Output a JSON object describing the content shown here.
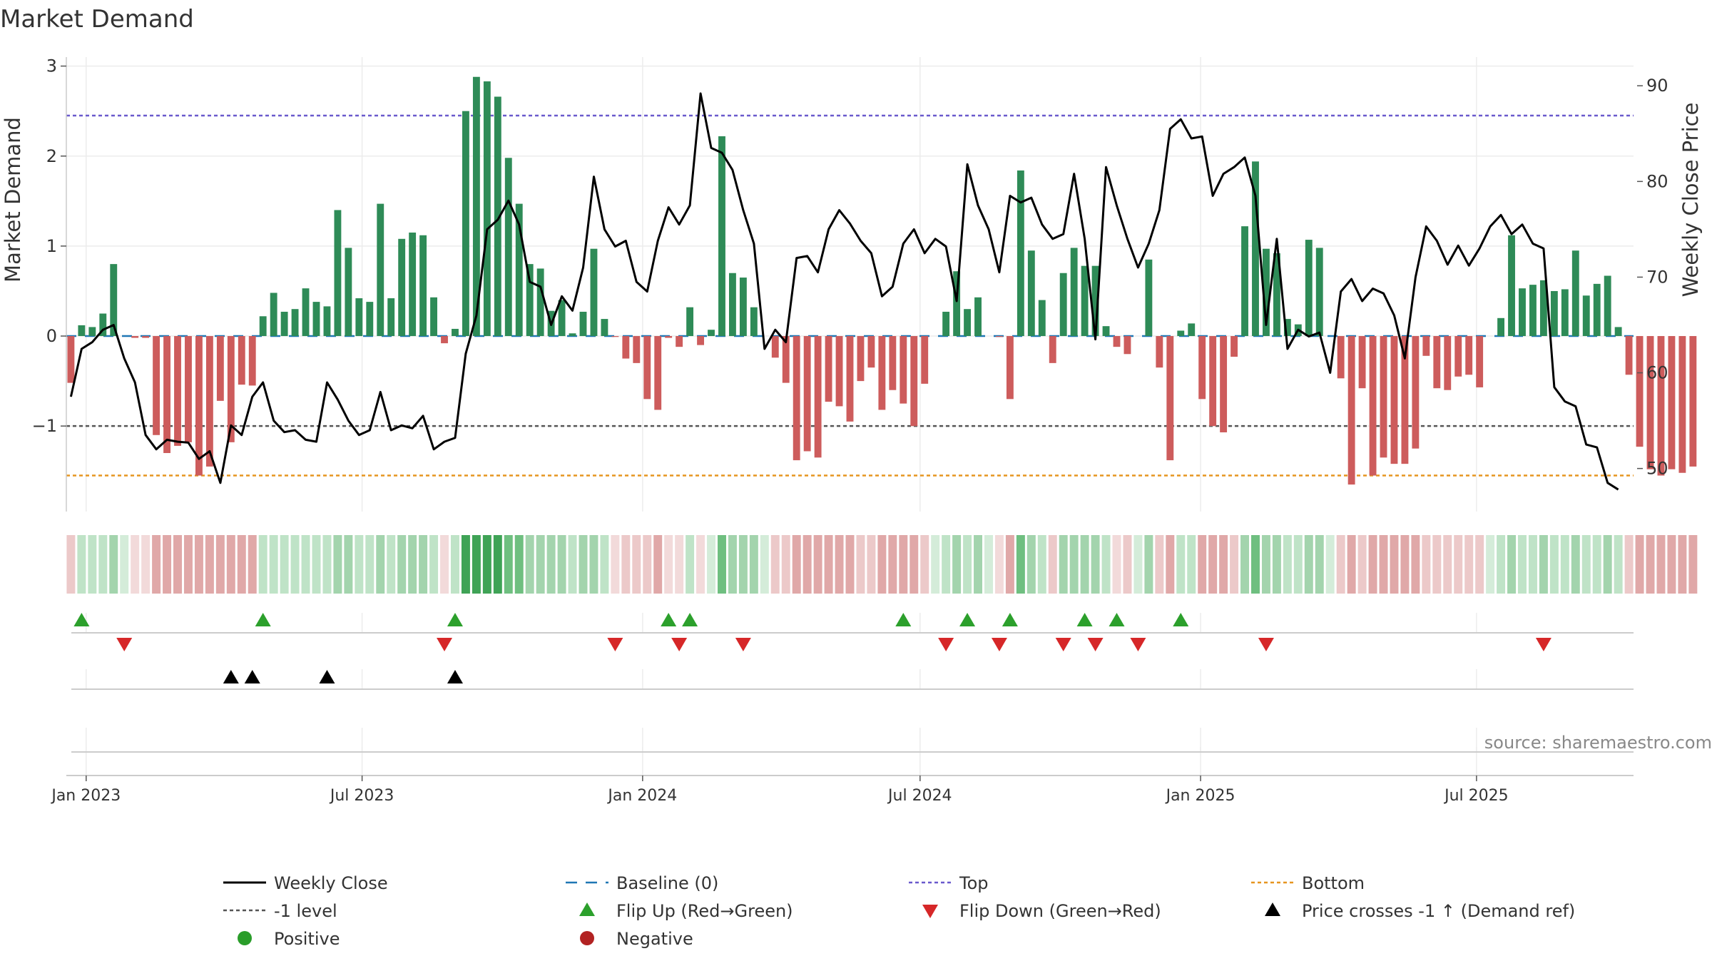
{
  "title": "Market Demand",
  "source": "source: sharemaestro.com",
  "colors": {
    "positive": "#2e8b57",
    "negative": "#cd5c5c",
    "close": "#000000",
    "baseline": "#1f77b4",
    "top": "#6a5acd",
    "bottom": "#e69520",
    "neg_level": "#555555",
    "flip_up": "#2ca02c",
    "flip_down": "#d62728",
    "cross": "#000000",
    "dot_pos": "#2a9d2a",
    "dot_neg": "#b22222"
  },
  "chart_data": {
    "type": "bar",
    "title": "Market Demand",
    "ylabel_left": "Market Demand",
    "ylabel_right": "Weekly Close Price",
    "ylim_left": [
      -1.95,
      3.1
    ],
    "yticks_left": [
      3,
      2,
      1,
      0,
      -1
    ],
    "ytick_labels_left": [
      "3",
      "2",
      "1",
      "0",
      "−1"
    ],
    "ylim_right": [
      45.5,
      93
    ],
    "yticks_right": [
      90,
      80,
      70,
      60,
      50
    ],
    "ytick_labels_right": [
      "90",
      "80",
      "70",
      "60",
      "50"
    ],
    "x_start": "2022-12-19",
    "x_end": "2025-10-12",
    "x_ticks": [
      {
        "date": "2023-01-01",
        "label": "Jan 2023"
      },
      {
        "date": "2023-07-01",
        "label": "Jul 2023"
      },
      {
        "date": "2024-01-01",
        "label": "Jan 2024"
      },
      {
        "date": "2024-07-01",
        "label": "Jul 2024"
      },
      {
        "date": "2025-01-01",
        "label": "Jan 2025"
      },
      {
        "date": "2025-07-01",
        "label": "Jul 2025"
      }
    ],
    "first_week": "2022-12-19",
    "levels": {
      "top": 2.45,
      "bottom": -1.55,
      "neg_level": -1.0,
      "baseline": 0
    },
    "demand": [
      -0.52,
      0.12,
      0.1,
      0.25,
      0.8,
      0,
      -0.02,
      -0.02,
      -1.1,
      -1.3,
      -1.22,
      -1.18,
      -1.55,
      -1.45,
      -0.72,
      -1.18,
      -0.54,
      -0.55,
      0.22,
      0.48,
      0.27,
      0.3,
      0.53,
      0.38,
      0.33,
      1.4,
      0.98,
      0.42,
      0.38,
      1.47,
      0.42,
      1.08,
      1.15,
      1.12,
      0.43,
      -0.08,
      0.08,
      2.5,
      2.88,
      2.83,
      2.66,
      1.98,
      1.47,
      0.8,
      0.75,
      0.28,
      0.4,
      0.03,
      0.27,
      0.97,
      0.19,
      -0.01,
      -0.25,
      -0.3,
      -0.7,
      -0.82,
      -0.02,
      -0.12,
      0.32,
      -0.1,
      0.07,
      2.22,
      0.7,
      0.65,
      0.32,
      0,
      -0.24,
      -0.52,
      -1.38,
      -1.28,
      -1.35,
      -0.73,
      -0.78,
      -0.95,
      -0.5,
      -0.35,
      -0.82,
      -0.6,
      -0.75,
      -1.0,
      -0.53,
      0,
      0.27,
      0.72,
      0.3,
      0.43,
      0,
      -0.01,
      -0.7,
      1.84,
      0.95,
      0.4,
      -0.3,
      0.7,
      0.98,
      0.78,
      0.78,
      0.11,
      -0.12,
      -0.2,
      0,
      0.85,
      -0.35,
      -1.38,
      0.06,
      0.14,
      -0.7,
      -1.0,
      -1.07,
      -0.23,
      1.22,
      1.94,
      0.97,
      0.92,
      0.19,
      0.13,
      1.07,
      0.98,
      0,
      -0.47,
      -1.65,
      -0.58,
      -1.55,
      -1.35,
      -1.42,
      -1.42,
      -1.25,
      -0.22,
      -0.58,
      -0.6,
      -0.45,
      -0.43,
      -0.57,
      0,
      0.2,
      1.12,
      0.53,
      0.57,
      0.62,
      0.5,
      0.52,
      0.95,
      0.45,
      0.58,
      0.67,
      0.1,
      -0.43,
      -1.23,
      -1.48,
      -1.55,
      -1.48,
      -1.52,
      -1.45
    ],
    "close": [
      57.5,
      62.5,
      63.2,
      64.5,
      65,
      61.5,
      59,
      53.5,
      52,
      53,
      52.8,
      52.7,
      51,
      51.8,
      48.5,
      54.5,
      53.5,
      57.5,
      59,
      55,
      53.8,
      54,
      53,
      52.8,
      59,
      57.2,
      55,
      53.5,
      54,
      58,
      54,
      54.5,
      54.2,
      55.5,
      52,
      52.8,
      53.2,
      62,
      66,
      75,
      76,
      78,
      75.5,
      69.5,
      69,
      65,
      68,
      66.5,
      71,
      80.5,
      75,
      73.2,
      73.8,
      69.5,
      68.5,
      73.8,
      77.3,
      75.5,
      77.5,
      89.2,
      83.5,
      83,
      81.2,
      77,
      73.5,
      62.5,
      64.5,
      63.2,
      72,
      72.2,
      70.5,
      75,
      77,
      75.6,
      73.8,
      72.5,
      68,
      69,
      73.5,
      75,
      72.5,
      74,
      73.2,
      67.5,
      81.8,
      77.5,
      75,
      70.5,
      78.5,
      77.8,
      78.3,
      75.5,
      74,
      74.5,
      80.8,
      74,
      63.5,
      81.5,
      77.5,
      74,
      71,
      73.5,
      77,
      85.5,
      86.5,
      84.5,
      84.7,
      78.5,
      80.8,
      81.5,
      82.5,
      78.5,
      65,
      74,
      62.5,
      64.5,
      63.8,
      64.2,
      60,
      68.5,
      69.8,
      67.5,
      68.8,
      68.3,
      66,
      61.5,
      70,
      75.3,
      73.8,
      71.3,
      73.3,
      71.2,
      73,
      75.3,
      76.5,
      74.5,
      75.5,
      73.5,
      73,
      58.5,
      57,
      56.5,
      52.5,
      52.2,
      48.5,
      47.8
    ],
    "intensity_levels": [
      2,
      2,
      2,
      2,
      3,
      1,
      1,
      1,
      3,
      3,
      3,
      3,
      3,
      3,
      3,
      3,
      3,
      3,
      2,
      2,
      2,
      2,
      2,
      2,
      2,
      3,
      3,
      2,
      2,
      3,
      2,
      3,
      3,
      3,
      2,
      1,
      2,
      5,
      5,
      5,
      5,
      4,
      4,
      3,
      3,
      3,
      3,
      2,
      3,
      3,
      2,
      1,
      2,
      2,
      2,
      3,
      1,
      1,
      2,
      1,
      1,
      4,
      3,
      3,
      3,
      1,
      2,
      2,
      3,
      3,
      3,
      3,
      3,
      3,
      2,
      2,
      3,
      3,
      3,
      3,
      2,
      1,
      2,
      3,
      2,
      3,
      1,
      1,
      3,
      4,
      3,
      2,
      2,
      3,
      3,
      3,
      3,
      2,
      1,
      2,
      1,
      3,
      2,
      3,
      2,
      2,
      3,
      3,
      3,
      2,
      3,
      4,
      3,
      3,
      2,
      2,
      3,
      3,
      1,
      2,
      3,
      2,
      3,
      3,
      3,
      3,
      3,
      2,
      2,
      2,
      2,
      2,
      2,
      1,
      2,
      3,
      2,
      2,
      3,
      2,
      2,
      3,
      2,
      2,
      3,
      2,
      2,
      3,
      3,
      3,
      3,
      3,
      3
    ],
    "flip_up_weeks": [
      1,
      18,
      36,
      56,
      58,
      78,
      84,
      88,
      95,
      98,
      104
    ],
    "flip_down_weeks": [
      5,
      35,
      51,
      57,
      63,
      82,
      87,
      93,
      96,
      100,
      112,
      138
    ],
    "cross_weeks": [
      15,
      17,
      24,
      36
    ],
    "legend": [
      {
        "label": "Weekly Close",
        "kind": "line-solid"
      },
      {
        "label": "Baseline (0)",
        "kind": "line-dash"
      },
      {
        "label": "Top",
        "kind": "line-dot-top"
      },
      {
        "label": "Bottom",
        "kind": "line-dot-bottom"
      },
      {
        "label": "-1 level",
        "kind": "line-dot-neg"
      },
      {
        "label": "Flip Up (Red→Green)",
        "kind": "tri-up-green"
      },
      {
        "label": "Flip Down (Green→Red)",
        "kind": "tri-down-red"
      },
      {
        "label": "Price crosses -1 ↑ (Demand ref)",
        "kind": "tri-up-black"
      },
      {
        "label": "Positive",
        "kind": "dot-pos"
      },
      {
        "label": "Negative",
        "kind": "dot-neg"
      }
    ]
  }
}
